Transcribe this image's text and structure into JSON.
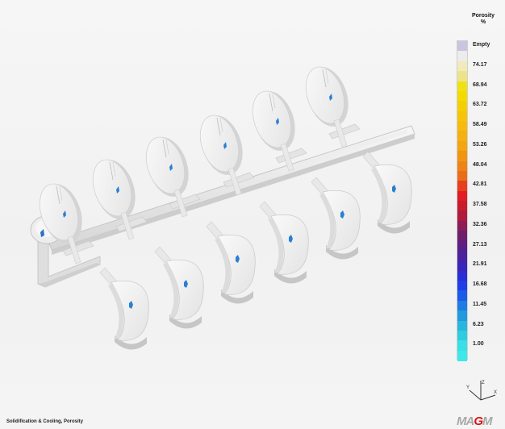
{
  "legend": {
    "title_line1": "Porosity",
    "title_line2": "%",
    "entries": [
      {
        "label": "Empty",
        "color": "#cbc3df"
      },
      {
        "label": "",
        "color": "#ececec"
      },
      {
        "label": "74.17",
        "color": "#f1ebbc"
      },
      {
        "label": "",
        "color": "#ede48a"
      },
      {
        "label": "68.94",
        "color": "#f1e114"
      },
      {
        "label": "",
        "color": "#f2dc00"
      },
      {
        "label": "63.72",
        "color": "#f5cf05"
      },
      {
        "label": "",
        "color": "#f7c507"
      },
      {
        "label": "58.49",
        "color": "#f7bb0d"
      },
      {
        "label": "",
        "color": "#f5b011"
      },
      {
        "label": "53.26",
        "color": "#f3a512"
      },
      {
        "label": "",
        "color": "#f19412"
      },
      {
        "label": "48.04",
        "color": "#ed8416"
      },
      {
        "label": "",
        "color": "#ea6e19"
      },
      {
        "label": "42.81",
        "color": "#e73f1e"
      },
      {
        "label": "",
        "color": "#e11c22"
      },
      {
        "label": "37.58",
        "color": "#c81c2c"
      },
      {
        "label": "",
        "color": "#b01b3c"
      },
      {
        "label": "32.36",
        "color": "#8c1d55"
      },
      {
        "label": "",
        "color": "#6e1f6b"
      },
      {
        "label": "27.13",
        "color": "#5b1f85"
      },
      {
        "label": "",
        "color": "#4b219c"
      },
      {
        "label": "21.91",
        "color": "#3a25b8"
      },
      {
        "label": "",
        "color": "#2a2dd3"
      },
      {
        "label": "16.68",
        "color": "#1f3ee8"
      },
      {
        "label": "",
        "color": "#1a5ce8"
      },
      {
        "label": "11.45",
        "color": "#1d7de2"
      },
      {
        "label": "",
        "color": "#229bdc"
      },
      {
        "label": "6.23",
        "color": "#28b6de"
      },
      {
        "label": "",
        "color": "#2fcbe2"
      },
      {
        "label": "1.00",
        "color": "#38dfe6"
      },
      {
        "label": "",
        "color": "#3ee8e8"
      }
    ]
  },
  "footer": {
    "label": "Solidification & Cooling, Porosity"
  },
  "logo": {
    "prefix": "MA",
    "highlight": "G",
    "suffix": "M"
  },
  "axes": {
    "z": "Z",
    "y": "Y",
    "x": "X"
  },
  "colors": {
    "part": "#f2f2f2",
    "part_shade": "#c9c9c9",
    "porosity_spot": "#2a7fd4"
  }
}
